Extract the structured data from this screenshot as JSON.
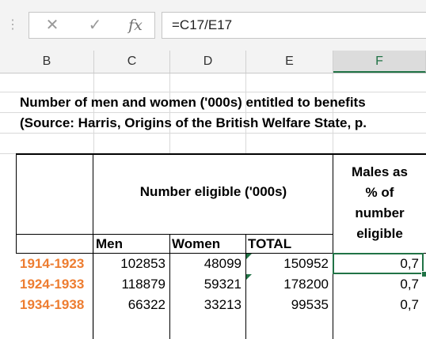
{
  "formula_bar": {
    "cancel_glyph": "✕",
    "enter_glyph": "✓",
    "fx_label": "fx",
    "formula": "=C17/E17"
  },
  "columns": [
    "B",
    "C",
    "D",
    "E",
    "F"
  ],
  "sheet": {
    "title_line1": "Number of men and women ('000s) entitled to benefits",
    "title_line2": "(Source: Harris, Origins of the British Welfare State, p.",
    "header_eligible": "Number eligible ('000s)",
    "header_males_pct": [
      "Males as",
      "% of",
      "number",
      "eligible"
    ],
    "sub_headers": {
      "men": "Men",
      "women": "Women",
      "total": "TOTAL"
    },
    "rows": [
      {
        "period": "1914-1923",
        "men": "102853",
        "women": "48099",
        "total": "150952",
        "ratio": "0,7"
      },
      {
        "period": "1924-1933",
        "men": "118879",
        "women": "59321",
        "total": "178200",
        "ratio": "0,7"
      },
      {
        "period": "1934-1938",
        "men": "66322",
        "women": "33213",
        "total": "99535",
        "ratio": "0,7"
      }
    ]
  },
  "colors": {
    "accent": "#217346",
    "period": "#ed7d31"
  }
}
